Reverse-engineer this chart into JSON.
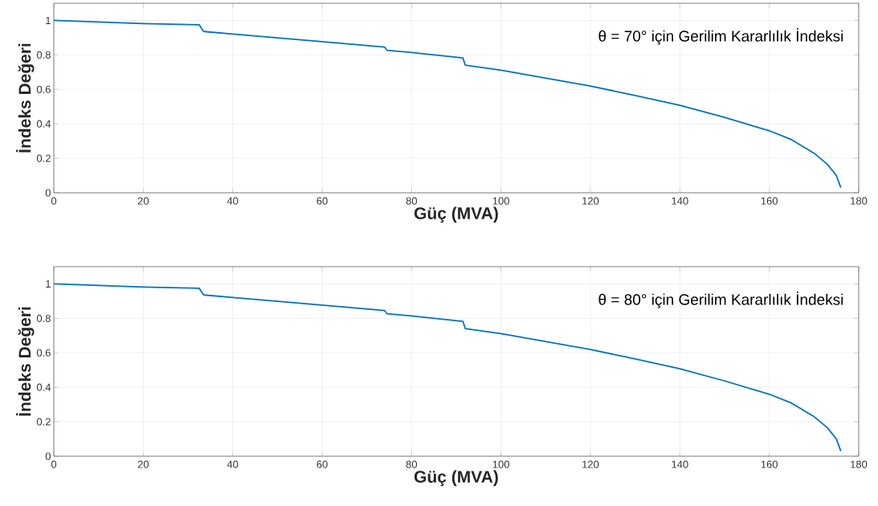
{
  "chart_data": [
    {
      "type": "line",
      "xlabel": "Güç (MVA)",
      "ylabel": "İndeks Değeri",
      "annotations": [
        "θ = 70° için Gerilim Kararlılık İndeksi"
      ],
      "x": [
        0,
        20,
        32.5,
        33.5,
        40,
        60,
        74,
        74.5,
        80,
        91.5,
        92,
        100,
        120,
        130,
        140,
        150,
        160,
        165,
        170,
        173,
        175,
        176
      ],
      "series": [
        {
          "color": "#0072bd",
          "values": [
            1.0,
            0.982,
            0.975,
            0.936,
            0.921,
            0.877,
            0.845,
            0.827,
            0.814,
            0.782,
            0.741,
            0.711,
            0.619,
            0.565,
            0.508,
            0.437,
            0.36,
            0.308,
            0.23,
            0.165,
            0.1,
            0.03
          ]
        }
      ],
      "xlim": [
        0,
        180
      ],
      "ylim": [
        0,
        1.1
      ],
      "xticks": [
        0,
        20,
        40,
        60,
        80,
        100,
        120,
        140,
        160,
        180
      ],
      "yticks": [
        0,
        0.2,
        0.4,
        0.6,
        0.8,
        1
      ],
      "grid": true
    },
    {
      "type": "line",
      "xlabel": "Güç (MVA)",
      "ylabel": "İndeks Değeri",
      "annotations": [
        "θ = 80° için Gerilim Kararlılık İndeksi"
      ],
      "x": [
        0,
        20,
        32.5,
        33.5,
        40,
        60,
        74,
        74.5,
        80,
        91.5,
        92,
        100,
        120,
        130,
        140,
        150,
        160,
        165,
        170,
        173,
        175,
        176
      ],
      "series": [
        {
          "color": "#0072bd",
          "values": [
            1.0,
            0.982,
            0.975,
            0.936,
            0.921,
            0.877,
            0.845,
            0.827,
            0.814,
            0.782,
            0.741,
            0.711,
            0.619,
            0.565,
            0.508,
            0.437,
            0.36,
            0.308,
            0.23,
            0.165,
            0.1,
            0.03
          ]
        }
      ],
      "xlim": [
        0,
        180
      ],
      "ylim": [
        0,
        1.1
      ],
      "xticks": [
        0,
        20,
        40,
        60,
        80,
        100,
        120,
        140,
        160,
        180
      ],
      "yticks": [
        0,
        0.2,
        0.4,
        0.6,
        0.8,
        1
      ],
      "grid": true
    }
  ]
}
